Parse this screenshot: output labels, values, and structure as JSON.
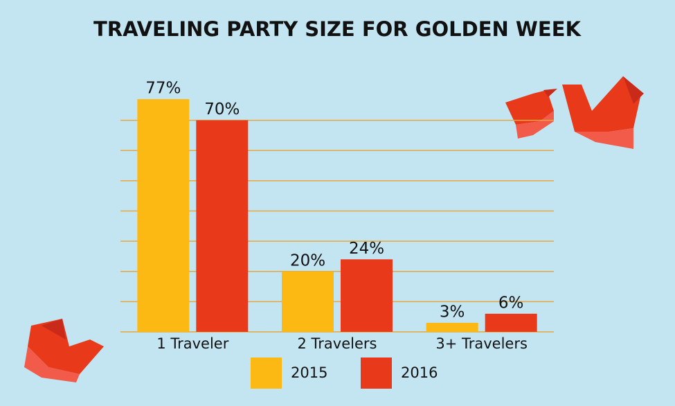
{
  "chart_data": {
    "type": "bar",
    "title": "TRAVELING PARTY SIZE FOR GOLDEN WEEK",
    "categories": [
      "1 Traveler",
      "2 Travelers",
      "3+ Travelers"
    ],
    "series": [
      {
        "name": "2015",
        "color": "#fdb913",
        "values": [
          77,
          20,
          3
        ],
        "value_labels": [
          "77%",
          "20%",
          "3%"
        ]
      },
      {
        "name": "2016",
        "color": "#e8391a",
        "values": [
          70,
          24,
          6
        ],
        "value_labels": [
          "70%",
          "24%",
          "6%"
        ]
      }
    ],
    "ylim": [
      0,
      80
    ],
    "yticks": [
      0,
      10,
      20,
      30,
      40,
      50,
      60,
      70
    ],
    "grid": true,
    "grid_color": "#e6a640"
  }
}
